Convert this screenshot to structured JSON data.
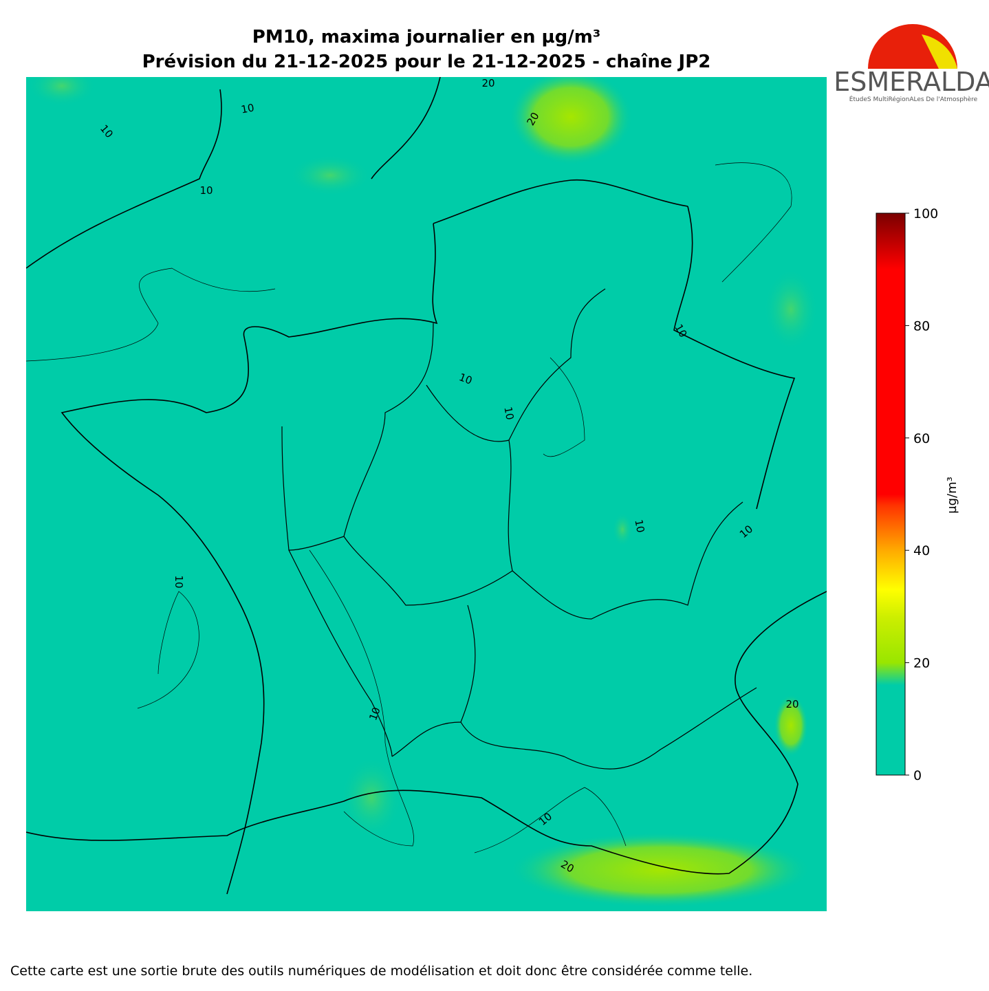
{
  "title": [
    "PM10, maxima journalier en µg/m³",
    "Prévision du 21-12-2025 pour le 21-12-2025 - chaîne JP2"
  ],
  "logo": {
    "name": "ESMERALDA",
    "subtitle": "ÉtudeS MultiRégionALes De l'Atmosphère"
  },
  "colorbar": {
    "label": "µg/m³",
    "ylim": [
      0,
      100
    ],
    "yticks": [
      0,
      20,
      40,
      60,
      80,
      100
    ]
  },
  "contour_labels": [
    10,
    10,
    10,
    10,
    10,
    10,
    10,
    10,
    10,
    10,
    10,
    20,
    20,
    20,
    20
  ],
  "footer": "Cette carte est une sortie brute des outils numériques de modélisation et doit donc être considérée comme telle."
}
